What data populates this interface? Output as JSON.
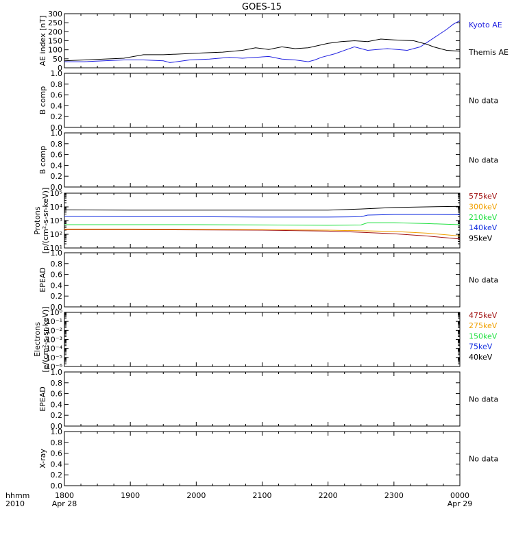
{
  "title": "GOES-15",
  "time_axis": {
    "ticks": [
      "1800",
      "1900",
      "2000",
      "2100",
      "2200",
      "2300",
      "0000"
    ],
    "left_labels": [
      "hhmm",
      "2010"
    ],
    "start_date": "Apr 28",
    "end_date": "Apr 29"
  },
  "colors": {
    "kyoto": "#2020e0",
    "themis": "#000000",
    "black": "#000000",
    "blue": "#1530e0",
    "green": "#20e040",
    "orange": "#f0a000",
    "darkred": "#a01010"
  },
  "chart_data": [
    {
      "type": "line",
      "ylabel": "AE index [nT]",
      "ylim": [
        0,
        310
      ],
      "y_ticks": [
        "0",
        "50",
        "100",
        "150",
        "200",
        "250",
        "300"
      ],
      "x_unit": "hours since 1800 UT",
      "series": [
        {
          "name": "Kyoto AE",
          "color_key": "kyoto",
          "x": [
            0,
            0.3,
            0.6,
            0.9,
            1.2,
            1.5,
            1.6,
            1.9,
            2.2,
            2.5,
            2.7,
            2.9,
            3.1,
            3.3,
            3.5,
            3.7,
            3.8,
            3.9,
            4.1,
            4.4,
            4.6,
            4.9,
            5.2,
            5.4,
            5.6,
            5.8,
            5.9,
            6.0
          ],
          "y": [
            35,
            35,
            40,
            45,
            45,
            40,
            30,
            45,
            50,
            60,
            55,
            60,
            65,
            50,
            45,
            35,
            45,
            60,
            80,
            120,
            100,
            110,
            100,
            120,
            170,
            220,
            250,
            270
          ]
        },
        {
          "name": "Themis AE",
          "color_key": "themis",
          "x": [
            0,
            0.3,
            0.6,
            0.9,
            1.2,
            1.5,
            1.8,
            2.1,
            2.4,
            2.7,
            2.9,
            3.1,
            3.3,
            3.5,
            3.7,
            4.0,
            4.2,
            4.4,
            4.6,
            4.8,
            5.0,
            5.3,
            5.5,
            5.6,
            5.8,
            6.0
          ],
          "y": [
            40,
            45,
            50,
            55,
            75,
            75,
            80,
            85,
            90,
            100,
            115,
            105,
            120,
            110,
            115,
            140,
            150,
            155,
            150,
            165,
            160,
            155,
            135,
            120,
            100,
            95
          ]
        }
      ]
    },
    {
      "type": "line",
      "ylabel": "B comp",
      "ylim": [
        0,
        1
      ],
      "y_ticks": [
        "0.0",
        "0.2",
        "0.4",
        "0.6",
        "0.8",
        "1.0"
      ],
      "status": "No data"
    },
    {
      "type": "line",
      "ylabel": "B comp",
      "ylim": [
        0,
        1
      ],
      "y_ticks": [
        "0.0",
        "0.2",
        "0.4",
        "0.6",
        "0.8",
        "1.0"
      ],
      "status": "No data"
    },
    {
      "type": "line",
      "ylabel": "Protons",
      "ylabel2": "[p/(cm²-s-sr-keV)]",
      "ylim": [
        10,
        100000
      ],
      "y_scale": "log",
      "y_ticks": [
        "10¹",
        "10²",
        "10³",
        "10⁴",
        "10⁵"
      ],
      "x_unit": "hours since 1800 UT",
      "series": [
        {
          "name": "575keV",
          "color_key": "darkred",
          "x": [
            0,
            1,
            2,
            3,
            4,
            4.5,
            5,
            5.5,
            6
          ],
          "y": [
            220,
            220,
            210,
            200,
            170,
            140,
            110,
            75,
            45
          ]
        },
        {
          "name": "300keV",
          "color_key": "orange",
          "x": [
            0,
            1,
            2,
            3,
            4,
            4.5,
            5,
            5.5,
            6
          ],
          "y": [
            240,
            240,
            230,
            220,
            200,
            180,
            160,
            120,
            75
          ]
        },
        {
          "name": "210keV",
          "color_key": "green",
          "x": [
            0,
            1,
            2,
            3,
            4,
            4.5,
            4.6,
            5,
            5.5,
            6
          ],
          "y": [
            500,
            500,
            500,
            480,
            450,
            480,
            700,
            700,
            600,
            500
          ]
        },
        {
          "name": "140keV",
          "color_key": "blue",
          "x": [
            0,
            1,
            2,
            3,
            4,
            4.5,
            4.6,
            5,
            5.5,
            6
          ],
          "y": [
            2000,
            1900,
            1900,
            1800,
            1800,
            1900,
            2500,
            2800,
            2800,
            2700
          ]
        },
        {
          "name": "95keV",
          "color_key": "black",
          "x": [
            0,
            1,
            2,
            3,
            4,
            4.5,
            5,
            5.5,
            6
          ],
          "y": [
            6000,
            5800,
            5800,
            5800,
            5800,
            7000,
            9000,
            10000,
            11000
          ]
        }
      ]
    },
    {
      "type": "line",
      "ylabel": "EPEAD",
      "ylim": [
        0,
        1
      ],
      "y_ticks": [
        "0.0",
        "0.2",
        "0.4",
        "0.6",
        "0.8",
        "1.0"
      ],
      "status": "No data"
    },
    {
      "type": "line",
      "ylabel": "Electrons",
      "ylabel2": "[e/(cm²-s-sr-keV)]",
      "ylim": [
        1e-06,
        1
      ],
      "y_scale": "log",
      "y_ticks": [
        "10⁻⁶",
        "10⁻⁵",
        "10⁻⁴",
        "10⁻³",
        "10⁻²",
        "10⁻¹",
        "10⁰"
      ],
      "legend": [
        "475keV",
        "275keV",
        "150keV",
        "75keV",
        "40keV"
      ],
      "legend_color_keys": [
        "darkred",
        "orange",
        "green",
        "blue",
        "black"
      ]
    },
    {
      "type": "line",
      "ylabel": "EPEAD",
      "ylim": [
        0,
        1
      ],
      "y_ticks": [
        "0.0",
        "0.2",
        "0.4",
        "0.6",
        "0.8",
        "1.0"
      ],
      "status": "No data"
    },
    {
      "type": "line",
      "ylabel": "X-ray",
      "ylim": [
        0,
        1
      ],
      "y_ticks": [
        "0.0",
        "0.2",
        "0.4",
        "0.6",
        "0.8",
        "1.0"
      ],
      "status": "No data"
    }
  ]
}
